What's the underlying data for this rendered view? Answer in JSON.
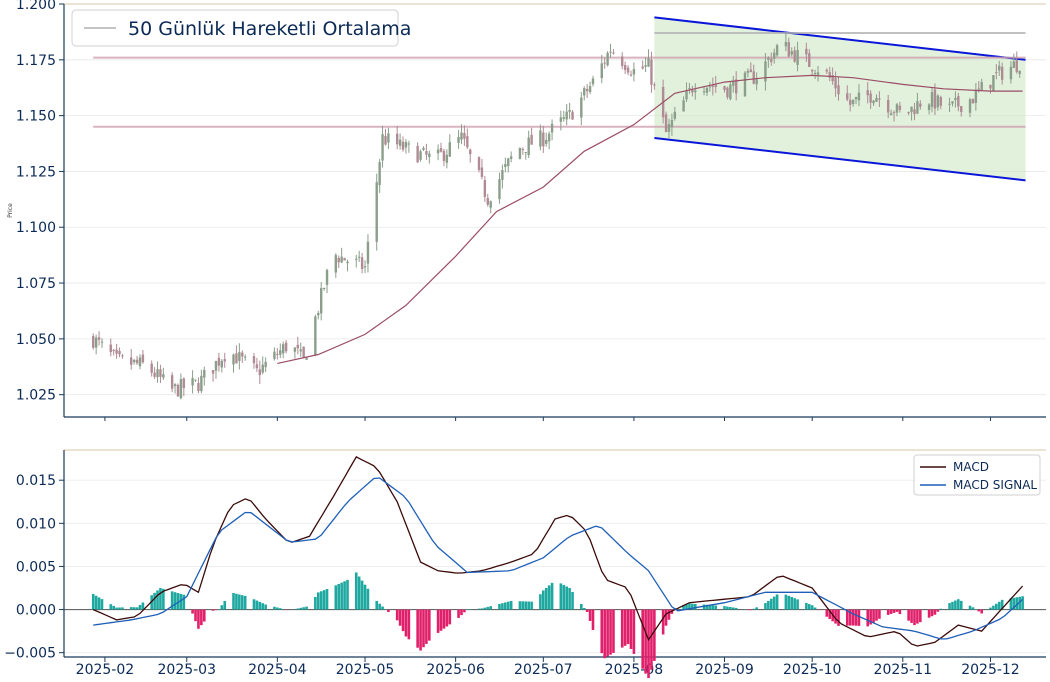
{
  "chart_data": [
    {
      "type": "candlestick",
      "ylabel": "Price",
      "ylim": [
        1.015,
        1.2
      ],
      "yticks": [
        "1.025",
        "1.050",
        "1.075",
        "1.100",
        "1.125",
        "1.150",
        "1.175",
        "1.200"
      ],
      "xticks": [
        "2025-02",
        "2025-03",
        "2025-04",
        "2025-05",
        "2025-06",
        "2025-07",
        "2025-08",
        "2025-09",
        "2025-10",
        "2025-11",
        "2025-12"
      ],
      "legend": {
        "position": "top-left",
        "entries": [
          "50 Günlük Hareketli Ortalama"
        ]
      },
      "horizontal_levels": [
        1.187,
        1.176,
        1.145
      ],
      "channel": {
        "start": "2025-08-08",
        "end": "2025-12-13",
        "upper": [
          1.194,
          1.175
        ],
        "lower": [
          1.14,
          1.121
        ]
      },
      "price_anchors": {
        "dates": [
          "2025-01-28",
          "2025-02-05",
          "2025-02-15",
          "2025-02-24",
          "2025-03-05",
          "2025-03-15",
          "2025-03-25",
          "2025-04-05",
          "2025-04-10",
          "2025-04-20",
          "2025-05-01",
          "2025-05-07",
          "2025-05-15",
          "2025-05-25",
          "2025-06-03",
          "2025-06-12",
          "2025-06-22",
          "2025-07-01",
          "2025-07-10",
          "2025-07-18",
          "2025-07-24",
          "2025-08-01",
          "2025-08-06",
          "2025-08-12",
          "2025-08-22",
          "2025-09-02",
          "2025-09-12",
          "2025-09-20",
          "2025-09-28",
          "2025-10-05",
          "2025-10-14",
          "2025-10-22",
          "2025-11-01",
          "2025-11-09",
          "2025-11-17",
          "2025-11-25",
          "2025-12-03",
          "2025-12-11"
        ],
        "close": [
          1.05,
          1.04,
          1.038,
          1.027,
          1.03,
          1.045,
          1.035,
          1.048,
          1.04,
          1.088,
          1.082,
          1.14,
          1.135,
          1.13,
          1.14,
          1.113,
          1.135,
          1.14,
          1.15,
          1.165,
          1.18,
          1.17,
          1.172,
          1.142,
          1.165,
          1.162,
          1.168,
          1.182,
          1.175,
          1.17,
          1.155,
          1.16,
          1.15,
          1.158,
          1.153,
          1.158,
          1.168,
          1.174
        ]
      },
      "moving_average": {
        "dates": [
          "2025-04-01",
          "2025-04-15",
          "2025-05-01",
          "2025-05-15",
          "2025-06-01",
          "2025-06-15",
          "2025-07-01",
          "2025-07-15",
          "2025-08-01",
          "2025-08-15",
          "2025-09-01",
          "2025-09-15",
          "2025-10-01",
          "2025-10-15",
          "2025-11-01",
          "2025-11-15",
          "2025-12-01",
          "2025-12-12"
        ],
        "values": [
          1.039,
          1.043,
          1.052,
          1.065,
          1.087,
          1.107,
          1.118,
          1.134,
          1.146,
          1.16,
          1.165,
          1.167,
          1.168,
          1.167,
          1.164,
          1.162,
          1.161,
          1.161
        ]
      }
    },
    {
      "type": "line+bar",
      "ylim": [
        -0.0055,
        0.0185
      ],
      "yticks": [
        "−0.005",
        "0.000",
        "0.005",
        "0.010",
        "0.015"
      ],
      "legend": {
        "position": "top-right",
        "entries": [
          "MACD",
          "MACD SIGNAL"
        ]
      },
      "series": [
        {
          "name": "MACD",
          "color": "#3b0a0a",
          "dates": [
            "2025-01-28",
            "2025-02-05",
            "2025-02-12",
            "2025-02-20",
            "2025-02-28",
            "2025-03-05",
            "2025-03-10",
            "2025-03-16",
            "2025-03-22",
            "2025-03-28",
            "2025-04-05",
            "2025-04-12",
            "2025-04-20",
            "2025-04-28",
            "2025-05-05",
            "2025-05-12",
            "2025-05-20",
            "2025-05-26",
            "2025-06-02",
            "2025-06-10",
            "2025-06-20",
            "2025-06-28",
            "2025-07-05",
            "2025-07-10",
            "2025-07-16",
            "2025-07-22",
            "2025-07-30",
            "2025-08-06",
            "2025-08-12",
            "2025-08-20",
            "2025-09-01",
            "2025-09-10",
            "2025-09-20",
            "2025-10-01",
            "2025-10-10",
            "2025-10-20",
            "2025-10-30",
            "2025-11-05",
            "2025-11-12",
            "2025-11-20",
            "2025-11-28",
            "2025-12-06",
            "2025-12-13"
          ],
          "values": [
            0.0,
            -0.0012,
            -0.0008,
            0.002,
            0.003,
            0.002,
            0.0075,
            0.012,
            0.013,
            0.0105,
            0.0077,
            0.0085,
            0.013,
            0.0177,
            0.0165,
            0.0125,
            0.0055,
            0.0045,
            0.0042,
            0.0045,
            0.0055,
            0.0065,
            0.0105,
            0.011,
            0.009,
            0.0035,
            0.0025,
            -0.0035,
            -0.0005,
            0.0008,
            0.0012,
            0.0015,
            0.004,
            0.0025,
            -0.0015,
            -0.0032,
            -0.0025,
            -0.0043,
            -0.0038,
            -0.0018,
            -0.0025,
            0.0005,
            0.0031
          ]
        },
        {
          "name": "MACD SIGNAL",
          "color": "#1f5fb8",
          "dates": [
            "2025-01-28",
            "2025-02-10",
            "2025-02-20",
            "2025-03-01",
            "2025-03-12",
            "2025-03-22",
            "2025-04-05",
            "2025-04-15",
            "2025-04-25",
            "2025-05-05",
            "2025-05-15",
            "2025-05-25",
            "2025-06-05",
            "2025-06-20",
            "2025-07-01",
            "2025-07-10",
            "2025-07-20",
            "2025-07-30",
            "2025-08-06",
            "2025-08-15",
            "2025-09-01",
            "2025-09-15",
            "2025-10-01",
            "2025-10-15",
            "2025-10-25",
            "2025-11-05",
            "2025-11-15",
            "2025-11-25",
            "2025-12-05",
            "2025-12-13"
          ],
          "values": [
            -0.0018,
            -0.0012,
            -0.0005,
            0.0015,
            0.009,
            0.0115,
            0.0078,
            0.0082,
            0.0125,
            0.0155,
            0.013,
            0.0075,
            0.0043,
            0.0045,
            0.006,
            0.0085,
            0.0098,
            0.0065,
            0.0045,
            -0.0002,
            0.0008,
            0.002,
            0.002,
            -0.0005,
            -0.002,
            -0.0025,
            -0.0035,
            -0.0025,
            -0.001,
            0.0015
          ]
        }
      ]
    }
  ]
}
